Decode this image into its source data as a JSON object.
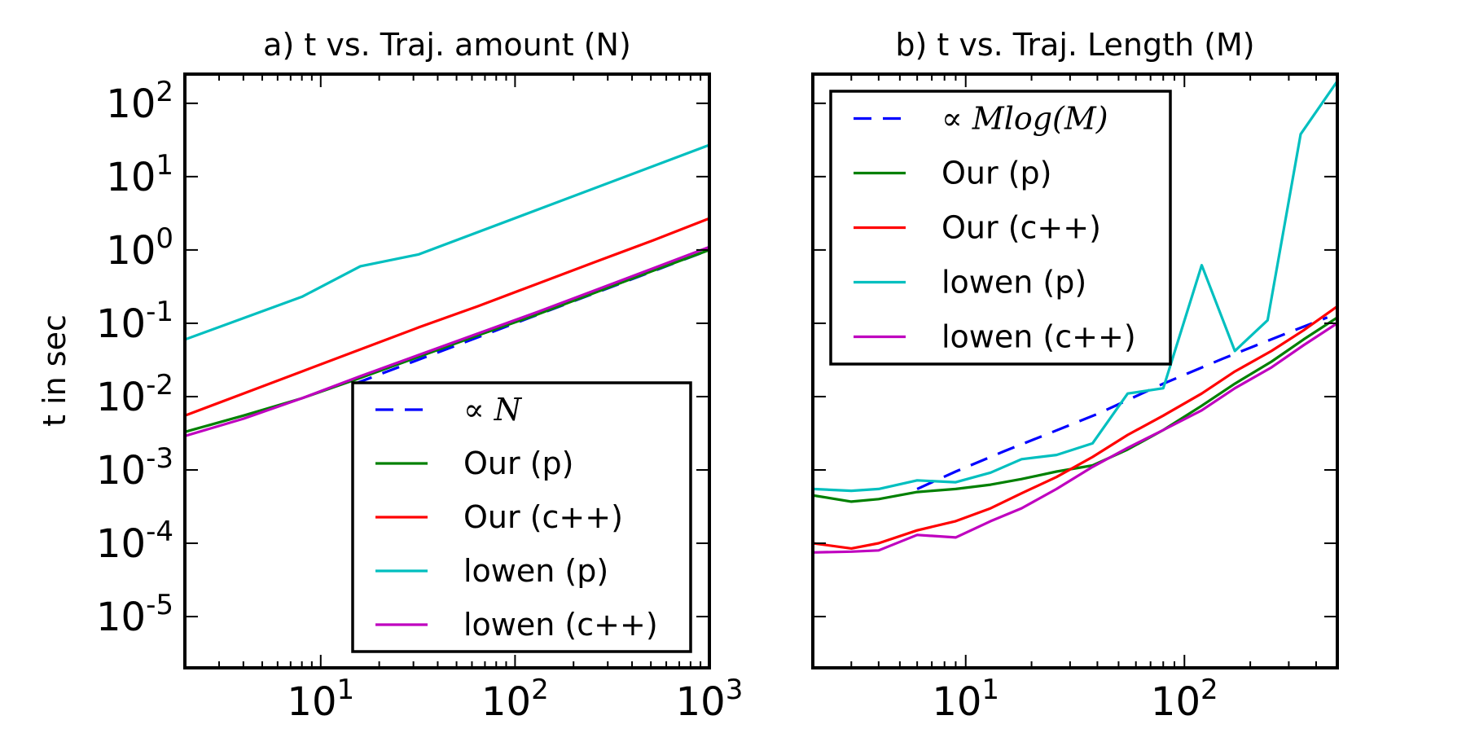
{
  "figure": {
    "ylabel": "t in sec"
  },
  "chart_data": [
    {
      "type": "line",
      "title": "a) t  vs. Traj. amount (N)",
      "xlabel": "",
      "ylabel": "t in sec",
      "xscale": "log",
      "yscale": "log",
      "xlim": [
        2,
        1000
      ],
      "ylim": [
        2e-06,
        250
      ],
      "xticks": [
        {
          "base": "10",
          "exp": "1",
          "value": 10
        },
        {
          "base": "10",
          "exp": "2",
          "value": 100
        },
        {
          "base": "10",
          "exp": "3",
          "value": 1000
        }
      ],
      "yticks": [
        {
          "base": "10",
          "exp": "-5",
          "value": 1e-05
        },
        {
          "base": "10",
          "exp": "-4",
          "value": 0.0001
        },
        {
          "base": "10",
          "exp": "-3",
          "value": 0.001
        },
        {
          "base": "10",
          "exp": "-2",
          "value": 0.01
        },
        {
          "base": "10",
          "exp": "-1",
          "value": 0.1
        },
        {
          "base": "10",
          "exp": "0",
          "value": 1
        },
        {
          "base": "10",
          "exp": "1",
          "value": 10
        },
        {
          "base": "10",
          "exp": "2",
          "value": 100
        }
      ],
      "legend": {
        "placement": "lower-right"
      },
      "series": [
        {
          "name": "∝ N",
          "math": true,
          "color": "#0000ff",
          "dash": true,
          "x": [
            15,
            30,
            60,
            120,
            250,
            500,
            1000
          ],
          "y": [
            0.015,
            0.03,
            0.06,
            0.12,
            0.25,
            0.5,
            1.0
          ]
        },
        {
          "name": "Our (p)",
          "color": "#008000",
          "dash": false,
          "x": [
            2,
            4,
            8,
            16,
            32,
            64,
            128,
            256,
            512,
            1000
          ],
          "y": [
            0.0033,
            0.0055,
            0.0095,
            0.018,
            0.035,
            0.068,
            0.13,
            0.26,
            0.52,
            1.0
          ]
        },
        {
          "name": "Our (c++)",
          "color": "#ff0000",
          "dash": false,
          "x": [
            2,
            4,
            8,
            16,
            32,
            64,
            128,
            256,
            512,
            1000
          ],
          "y": [
            0.0055,
            0.011,
            0.022,
            0.044,
            0.088,
            0.17,
            0.34,
            0.68,
            1.35,
            2.7
          ]
        },
        {
          "name": "lowen (p)",
          "color": "#00bfbf",
          "dash": false,
          "x": [
            2,
            8,
            16,
            32,
            1000
          ],
          "y": [
            0.06,
            0.23,
            0.6,
            0.87,
            27
          ]
        },
        {
          "name": "lowen (c++)",
          "color": "#bf00bf",
          "dash": false,
          "x": [
            2,
            4,
            8,
            16,
            32,
            64,
            128,
            256,
            512,
            1000
          ],
          "y": [
            0.0029,
            0.005,
            0.0095,
            0.019,
            0.037,
            0.072,
            0.14,
            0.28,
            0.56,
            1.1
          ]
        }
      ]
    },
    {
      "type": "line",
      "title": "b) t  vs. Traj. Length (M)",
      "xlabel": "",
      "ylabel": "",
      "xscale": "log",
      "yscale": "log",
      "xlim": [
        2,
        500
      ],
      "ylim": [
        2e-06,
        250
      ],
      "xticks": [
        {
          "base": "10",
          "exp": "1",
          "value": 10
        },
        {
          "base": "10",
          "exp": "2",
          "value": 100
        }
      ],
      "yticks": [],
      "legend": {
        "placement": "upper-left"
      },
      "series": [
        {
          "name": "∝ Mlog(M)",
          "math": true,
          "color": "#0000ff",
          "dash": true,
          "x": [
            6,
            9,
            15,
            25,
            40,
            80,
            150,
            300,
            450
          ],
          "y": [
            0.00055,
            0.00095,
            0.0018,
            0.0033,
            0.0058,
            0.015,
            0.033,
            0.075,
            0.12
          ]
        },
        {
          "name": "Our (p)",
          "color": "#008000",
          "dash": false,
          "x": [
            2,
            3,
            4,
            6,
            9,
            13,
            18,
            26,
            38,
            55,
            80,
            120,
            170,
            250,
            350,
            500
          ],
          "y": [
            0.00045,
            0.00037,
            0.0004,
            0.0005,
            0.00055,
            0.00063,
            0.00075,
            0.00095,
            0.00115,
            0.0019,
            0.0035,
            0.0075,
            0.015,
            0.03,
            0.06,
            0.12
          ]
        },
        {
          "name": "Our (c++)",
          "color": "#ff0000",
          "dash": false,
          "x": [
            2,
            3,
            4,
            6,
            9,
            13,
            18,
            26,
            38,
            55,
            80,
            120,
            170,
            250,
            350,
            500
          ],
          "y": [
            0.0001,
            8.5e-05,
            0.0001,
            0.00015,
            0.0002,
            0.0003,
            0.00048,
            0.0008,
            0.0015,
            0.003,
            0.0055,
            0.011,
            0.022,
            0.042,
            0.08,
            0.17
          ]
        },
        {
          "name": "lowen (p)",
          "color": "#00bfbf",
          "dash": false,
          "x": [
            2,
            3,
            4,
            6,
            9,
            13,
            18,
            26,
            38,
            55,
            80,
            120,
            170,
            240,
            340,
            500
          ],
          "y": [
            0.00055,
            0.00052,
            0.00055,
            0.00072,
            0.00068,
            0.00092,
            0.0014,
            0.0016,
            0.0023,
            0.011,
            0.013,
            0.62,
            0.042,
            0.11,
            38,
            200
          ]
        },
        {
          "name": "lowen (c++)",
          "color": "#bf00bf",
          "dash": false,
          "x": [
            2,
            3,
            4,
            6,
            9,
            13,
            18,
            26,
            38,
            55,
            80,
            120,
            170,
            250,
            350,
            500
          ],
          "y": [
            7.5e-05,
            7.7e-05,
            8e-05,
            0.00013,
            0.00012,
            0.0002,
            0.0003,
            0.00055,
            0.0011,
            0.002,
            0.0035,
            0.0065,
            0.013,
            0.025,
            0.05,
            0.1
          ]
        }
      ]
    }
  ]
}
